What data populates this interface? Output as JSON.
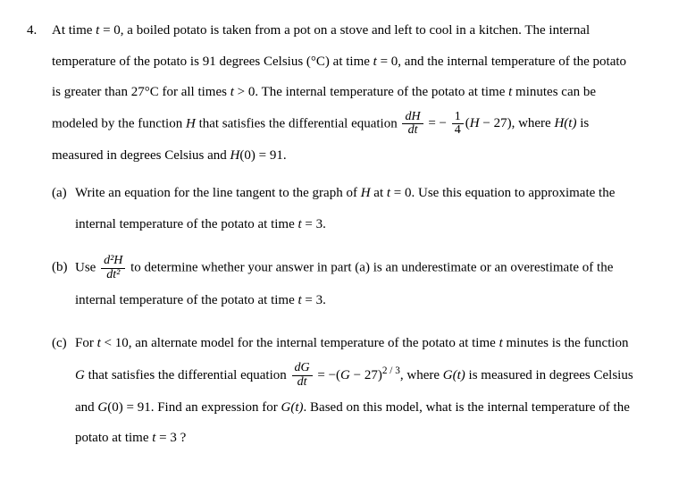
{
  "problem_number": "4.",
  "stem": {
    "l1": "At time ",
    "l1b": " = 0, a boiled potato is taken from a pot on a stove and left to cool in a kitchen. The internal",
    "l2a": "temperature of the potato is 91 degrees Celsius (°C) at time ",
    "l2b": " = 0, and the internal temperature of the potato",
    "l3a": "is greater than 27°C for all times ",
    "l3b": " > 0.  The internal temperature of the potato at time ",
    "l3c": " minutes can be",
    "l4a": "modeled by the function ",
    "l4b": " that satisfies the differential equation ",
    "l4c": " − 27), where ",
    "l4d": " is",
    "l5a": "measured in degrees Celsius and ",
    "l5b": "(0) = 91."
  },
  "frac": {
    "dH": "dH",
    "dt": "dt",
    "one": "1",
    "four": "4",
    "d2H": "d²H",
    "dt2": "dt²",
    "dG": "dG"
  },
  "parts": {
    "a": {
      "label": "(a)",
      "l1a": "Write an equation for the line tangent to the graph of ",
      "l1b": " at ",
      "l1c": " = 0.  Use this equation to approximate the",
      "l2a": "internal temperature of the potato at time ",
      "l2b": " = 3."
    },
    "b": {
      "label": "(b)",
      "l1a": "Use ",
      "l1b": " to determine whether your answer in part (a) is an underestimate or an overestimate of the",
      "l2a": "internal temperature of the potato at time ",
      "l2b": " = 3."
    },
    "c": {
      "label": "(c)",
      "l1a": "For ",
      "l1b": " < 10, an alternate model for the internal temperature of the potato at time ",
      "l1c": " minutes is the function",
      "l2a": " that satisfies the differential equation ",
      "l2b": " = −(",
      "l2c": " − 27)",
      "l2d": ", where ",
      "l2e": " is measured in degrees Celsius",
      "l3a": "and ",
      "l3b": "(0) = 91.  Find an expression for ",
      "l3c": ". Based on this model, what is the internal temperature of the",
      "l4a": "potato at time ",
      "l4b": " = 3 ?"
    }
  },
  "vars": {
    "t": "t",
    "H": "H",
    "Ht": "H(t)",
    "G": "G",
    "Gt": "G(t)",
    "exp": "2 / 3"
  },
  "eq_sym": " =  − "
}
